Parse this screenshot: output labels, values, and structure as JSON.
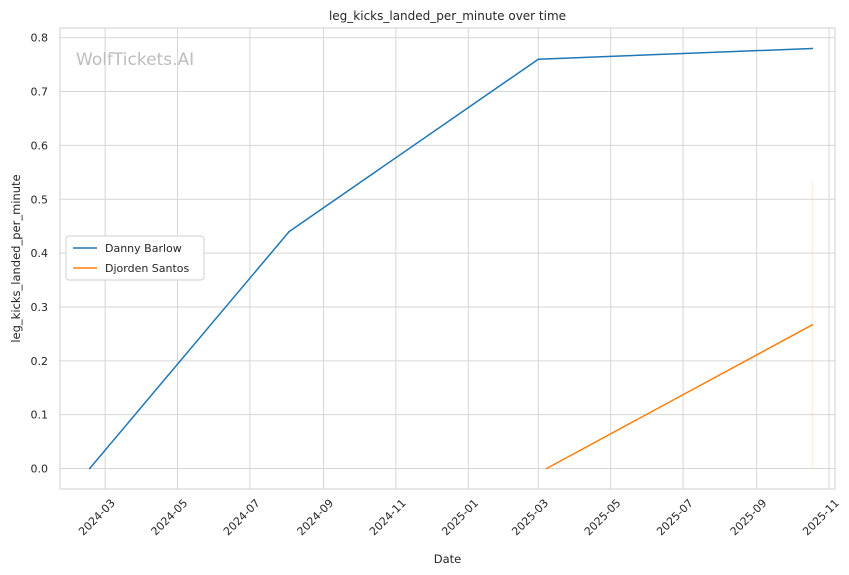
{
  "chart_data": {
    "type": "line",
    "title": "leg_kicks_landed_per_minute over time",
    "xlabel": "Date",
    "ylabel": "leg_kicks_landed_per_minute",
    "watermark": "WolfTickets.AI",
    "x_ticks": [
      "2024-03",
      "2024-05",
      "2024-07",
      "2024-09",
      "2024-11",
      "2025-01",
      "2025-03",
      "2025-05",
      "2025-07",
      "2025-09",
      "2025-11"
    ],
    "y_ticks": [
      "0.0",
      "0.1",
      "0.2",
      "0.3",
      "0.4",
      "0.5",
      "0.6",
      "0.7",
      "0.8"
    ],
    "xlim": [
      "2024-01-23",
      "2025-11-06"
    ],
    "ylim": [
      -0.038,
      0.818
    ],
    "grid": true,
    "legend_position": "center-left",
    "series": [
      {
        "name": "Danny Barlow",
        "color": "#1f77b4",
        "x": [
          "2024-02-17",
          "2024-08-03",
          "2025-03-01",
          "2025-10-18"
        ],
        "y": [
          0.0,
          0.44,
          0.76,
          0.78
        ]
      },
      {
        "name": "Djorden Santos",
        "color": "#ff7f0e",
        "x": [
          "2025-03-08",
          "2025-10-18"
        ],
        "y": [
          0.0,
          0.267
        ]
      }
    ],
    "annotations": [
      {
        "type": "vertical-band",
        "x": "2025-10-18",
        "y": [
          0.0,
          0.535
        ],
        "color": "#ff7f0e",
        "opacity": 0.12
      }
    ]
  }
}
